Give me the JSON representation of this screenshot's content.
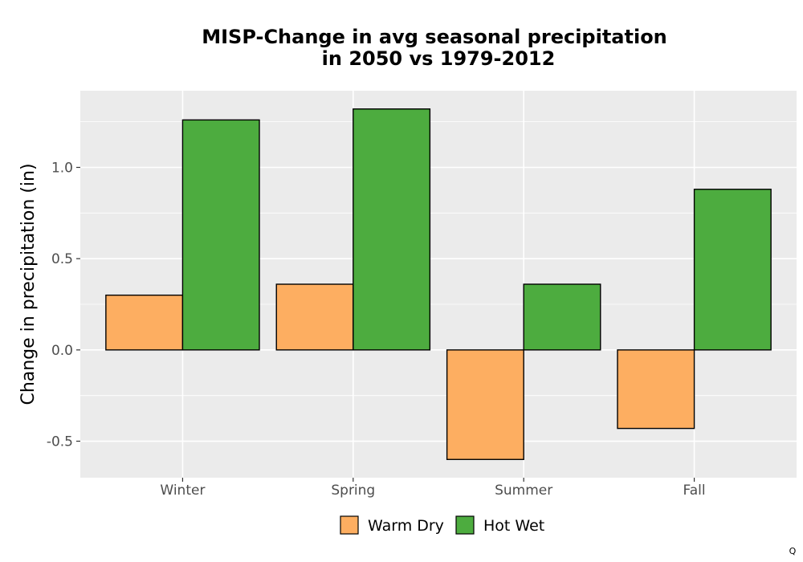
{
  "chart_data": {
    "type": "bar",
    "title_lines": [
      "MISP-Change in avg seasonal precipitation",
      "in 2050 vs 1979-2012"
    ],
    "xlabel": "",
    "ylabel": "Change in precipitation (in)",
    "categories": [
      "Winter",
      "Spring",
      "Summer",
      "Fall"
    ],
    "series": [
      {
        "name": "Warm Dry",
        "color": "#fdae61",
        "values": [
          0.3,
          0.36,
          -0.6,
          -0.43
        ]
      },
      {
        "name": "Hot Wet",
        "color": "#4dac3f",
        "values": [
          1.26,
          1.32,
          0.36,
          0.88
        ]
      }
    ],
    "ylim": [
      -0.7,
      1.42
    ],
    "yticks": [
      -0.5,
      0.0,
      0.5,
      1.0
    ],
    "ytick_labels": [
      "-0.5",
      "0.0",
      "0.5",
      "1.0"
    ],
    "grid": true,
    "legend_position": "bottom"
  },
  "footer": {
    "corner_mark": "Q"
  }
}
